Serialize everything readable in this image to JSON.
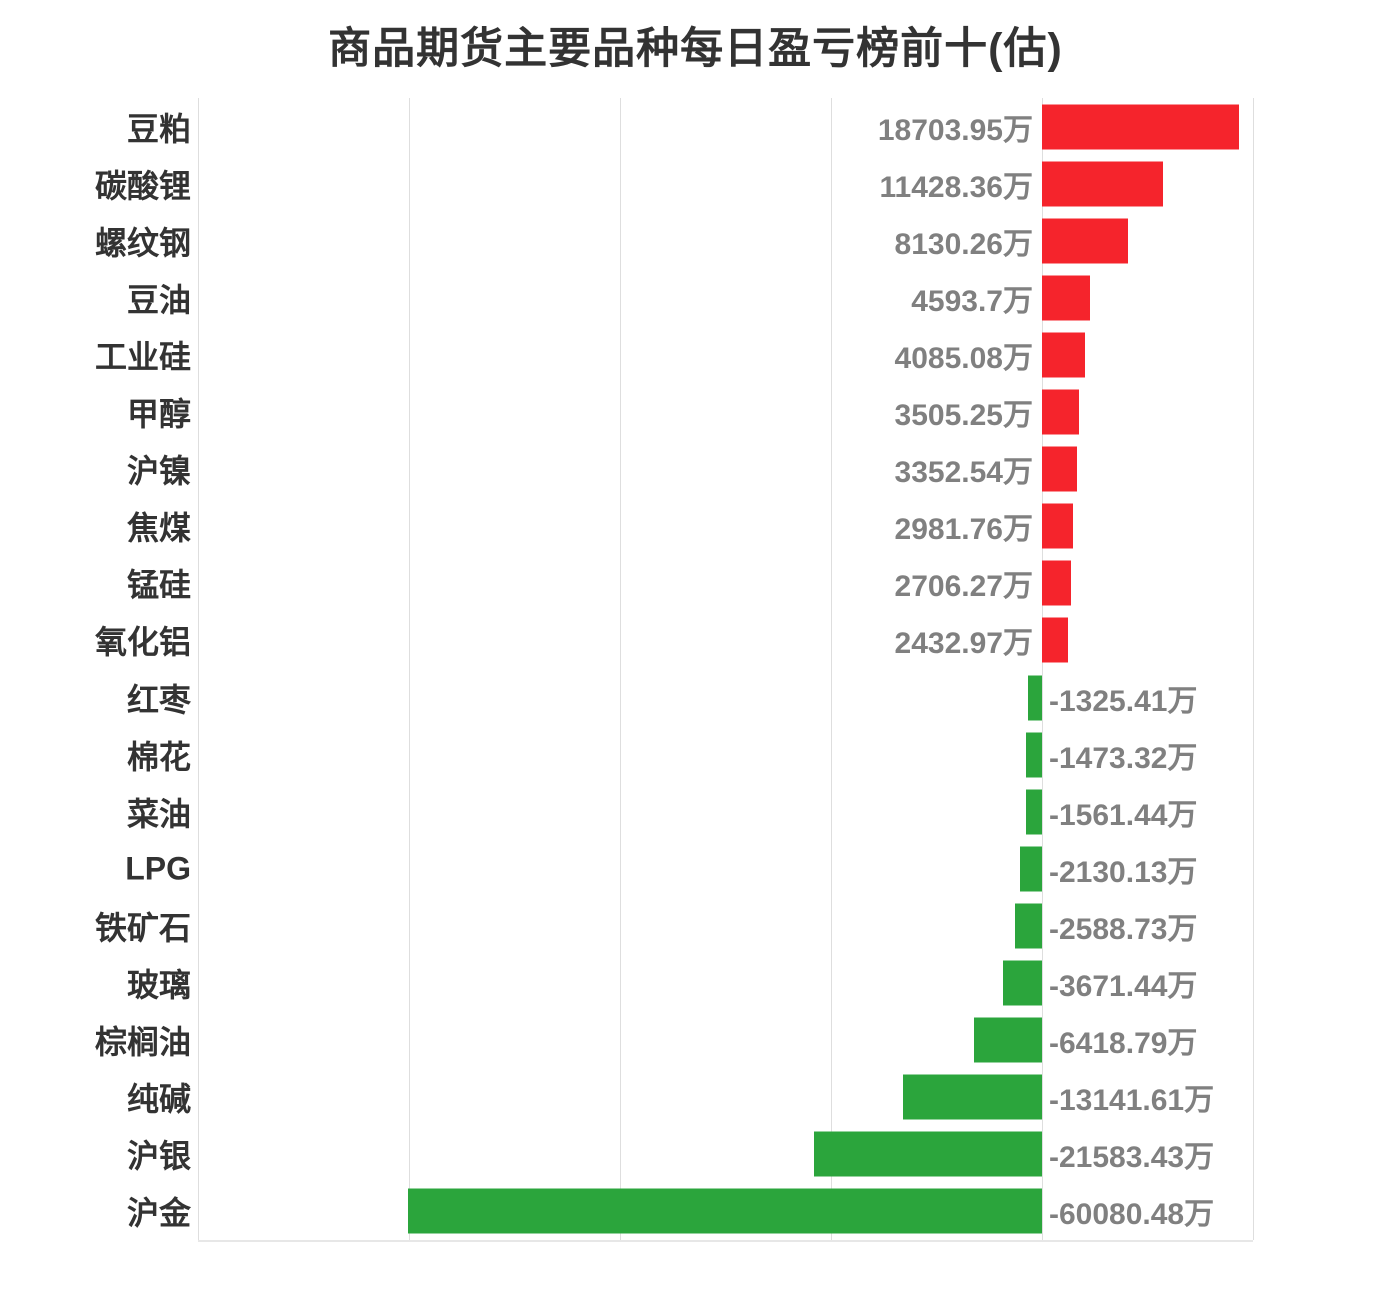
{
  "page": {
    "background": "#ffffff"
  },
  "chart_data": {
    "type": "bar",
    "orientation": "horizontal",
    "title": "商品期货主要品种每日盈亏榜前十(估)",
    "categories": [
      "豆粕",
      "碳酸锂",
      "螺纹钢",
      "豆油",
      "工业硅",
      "甲醇",
      "沪镍",
      "焦煤",
      "锰硅",
      "氧化铝",
      "红枣",
      "棉花",
      "菜油",
      "LPG",
      "铁矿石",
      "玻璃",
      "棕榈油",
      "纯碱",
      "沪银",
      "沪金"
    ],
    "values": [
      18703.95,
      11428.36,
      8130.26,
      4593.7,
      4085.08,
      3505.25,
      3352.54,
      2981.76,
      2706.27,
      2432.97,
      -1325.41,
      -1473.32,
      -1561.44,
      -2130.13,
      -2588.73,
      -3671.44,
      -6418.79,
      -13141.61,
      -21583.43,
      -60080.48
    ],
    "value_labels": [
      "18703.95万",
      "11428.36万",
      "8130.26万",
      "4593.7万",
      "4085.08万",
      "3505.25万",
      "3352.54万",
      "2981.76万",
      "2706.27万",
      "2432.97万",
      "-1325.41万",
      "-1473.32万",
      "-1561.44万",
      "-2130.13万",
      "-2588.73万",
      "-3671.44万",
      "-6418.79万",
      "-13141.61万",
      "-21583.43万",
      "-60080.48万"
    ],
    "unit": "万",
    "xlabel": "",
    "ylabel": "",
    "xlim": [
      -80000,
      20000
    ],
    "gridlines": [
      -80000,
      -60000,
      -40000,
      -20000,
      0,
      20000
    ],
    "grid": "vertical-only",
    "legend": "none"
  },
  "colors": {
    "positive": "#f5242c",
    "negative": "#2ba53c",
    "value_label": "#808080",
    "category_label": "#333333",
    "title": "#333333",
    "gridline": "#dedede",
    "axis_line": "#e7e7e7",
    "background": "#ffffff"
  }
}
